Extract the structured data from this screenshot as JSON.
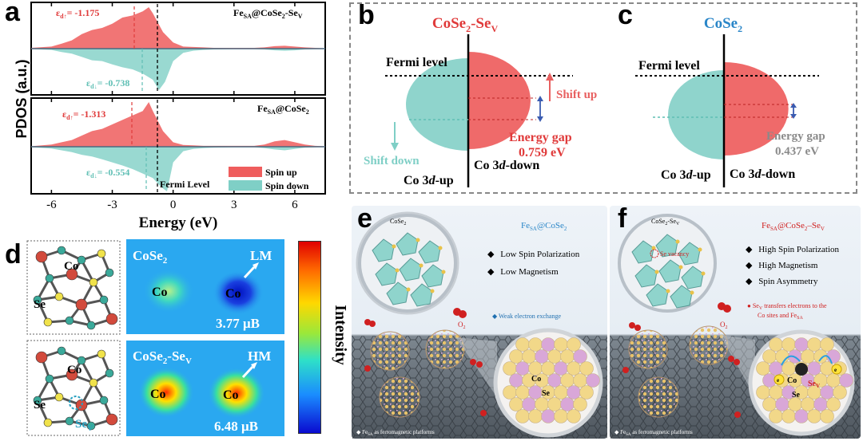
{
  "colors": {
    "spin_up": "#ef5d5d",
    "spin_down": "#7fcfc6",
    "red": "#e03a3a",
    "teal": "#5fbfb4",
    "blue_title": "#2a86c8",
    "gray": "#8a8a8a"
  },
  "panel_a": {
    "label": "a",
    "top": {
      "sys": "Fe",
      "sys_sub": "SA",
      "sys_rest": "@CoSe",
      "sys_sub2": "2",
      "sys_rest2": "-Se",
      "sys_sub3": "V",
      "eps_up_sym": "ε",
      "eps_up_sub": "d↑",
      "eps_up_val": "= -1.175",
      "eps_dn_sym": "ε",
      "eps_dn_sub": "d↓",
      "eps_dn_val": "= -0.738"
    },
    "bottom": {
      "sys": "Fe",
      "sys_sub": "SA",
      "sys_rest": "@CoSe",
      "sys_sub2": "2",
      "eps_up_sym": "ε",
      "eps_up_sub": "d↑",
      "eps_up_val": "= -1.313",
      "eps_dn_sym": "ε",
      "eps_dn_sub": "d↓",
      "eps_dn_val": "= -0.554"
    },
    "fermi_label": "Fermi Level",
    "legend_up": "Spin up",
    "legend_down": "Spin down",
    "xlabel": "Energy (eV)",
    "ylabel": "PDOS (a.u.)",
    "xticks": [
      "-6",
      "-3",
      "0",
      "3",
      "6"
    ]
  },
  "chart_data": [
    {
      "type": "area",
      "title": "",
      "xlabel": "Energy (eV)",
      "ylabel": "PDOS (a.u.)",
      "xlim": [
        -7,
        7.5
      ],
      "xticks": [
        -6,
        -3,
        0,
        3,
        6
      ],
      "legend": [
        "Spin up",
        "Spin down"
      ],
      "legend_position": "bottom-right",
      "annotations": [
        "Fermi Level"
      ],
      "panels": [
        {
          "name": "FeSA@CoSe2-SeV",
          "d_band_center_up": -1.175,
          "d_band_center_down": -0.738,
          "series": [
            {
              "name": "Spin up",
              "x": [
                -7,
                -6,
                -5.5,
                -5,
                -4.5,
                -4,
                -3.5,
                -3,
                -2.5,
                -2,
                -1.5,
                -1.2,
                -1,
                -0.5,
                0,
                0.5,
                1,
                1.5,
                2,
                3,
                4,
                4.5,
                5,
                5.5,
                6,
                6.5,
                7,
                7.5
              ],
              "values": [
                0.02,
                0.05,
                0.12,
                0.2,
                0.35,
                0.45,
                0.5,
                0.6,
                0.75,
                0.8,
                0.9,
                1.0,
                0.85,
                0.4,
                0.15,
                0.05,
                0.04,
                0.03,
                0.02,
                0.02,
                0.02,
                0.03,
                0.06,
                0.07,
                0.05,
                0.03,
                0.02,
                0.01
              ]
            },
            {
              "name": "Spin down",
              "x": [
                -7,
                -6,
                -5.5,
                -5,
                -4.5,
                -4,
                -3.5,
                -3,
                -2.5,
                -2,
                -1.5,
                -1,
                -0.7,
                -0.4,
                0,
                0.5,
                1,
                1.5,
                2,
                3,
                4,
                4.5,
                5,
                5.5,
                6,
                6.5,
                7,
                7.5
              ],
              "values": [
                0.01,
                0.03,
                0.08,
                0.12,
                0.2,
                0.28,
                0.3,
                0.38,
                0.45,
                0.5,
                0.6,
                0.75,
                1.0,
                0.8,
                0.3,
                0.1,
                0.05,
                0.03,
                0.02,
                0.01,
                0.01,
                0.02,
                0.04,
                0.05,
                0.04,
                0.02,
                0.01,
                0.0
              ]
            }
          ]
        },
        {
          "name": "FeSA@CoSe2",
          "d_band_center_up": -1.313,
          "d_band_center_down": -0.554,
          "series": [
            {
              "name": "Spin up",
              "x": [
                -7,
                -6,
                -5.5,
                -5,
                -4.5,
                -4,
                -3.5,
                -3,
                -2.5,
                -2,
                -1.5,
                -1.2,
                -1,
                -0.5,
                0,
                0.5,
                1,
                1.5,
                2,
                3,
                4,
                4.5,
                5,
                5.5,
                6,
                6.5,
                7,
                7.5
              ],
              "values": [
                0.01,
                0.05,
                0.1,
                0.15,
                0.25,
                0.35,
                0.4,
                0.5,
                0.6,
                0.7,
                0.8,
                1.0,
                0.8,
                0.35,
                0.1,
                0.04,
                0.03,
                0.02,
                0.02,
                0.02,
                0.02,
                0.05,
                0.12,
                0.15,
                0.1,
                0.05,
                0.02,
                0.01
              ]
            },
            {
              "name": "Spin down",
              "x": [
                -7,
                -6,
                -5.5,
                -5,
                -4.5,
                -4,
                -3.5,
                -3,
                -2.5,
                -2,
                -1.5,
                -1,
                -0.6,
                -0.3,
                0,
                0.5,
                1,
                1.5,
                2,
                3,
                4,
                4.5,
                5,
                5.5,
                6,
                6.5,
                7,
                7.5
              ],
              "values": [
                0.01,
                0.04,
                0.08,
                0.12,
                0.18,
                0.22,
                0.28,
                0.35,
                0.42,
                0.5,
                0.6,
                0.7,
                0.9,
                1.0,
                0.35,
                0.1,
                0.05,
                0.03,
                0.02,
                0.01,
                0.01,
                0.03,
                0.06,
                0.08,
                0.05,
                0.02,
                0.01,
                0.0
              ]
            }
          ]
        }
      ]
    }
  ],
  "panel_b": {
    "label": "b",
    "title": "CoSe",
    "title_sub": "2",
    "title_rest": "-Se",
    "title_sub2": "V",
    "fermi": "Fermi level",
    "shift_up": "Shift up",
    "shift_down": "Shift down",
    "gap_label": "Energy gap",
    "gap_value": "0.759 eV",
    "up_label_a": "Co 3",
    "up_label_d": "d",
    "up_label_b": "-up",
    "down_label_a": "Co 3",
    "down_label_d": "d",
    "down_label_b": "-down"
  },
  "panel_c": {
    "label": "c",
    "title": "CoSe",
    "title_sub": "2",
    "fermi": "Fermi level",
    "gap_label": "Energy gap",
    "gap_value": "0.437 eV",
    "up_label_a": "Co 3",
    "up_label_d": "d",
    "up_label_b": "-up",
    "down_label_a": "Co 3",
    "down_label_d": "d",
    "down_label_b": "-down"
  },
  "panel_d": {
    "label": "d",
    "top": {
      "title": "CoSe",
      "title_sub": "2",
      "co1": "Co",
      "co2": "Co",
      "state": "LM",
      "moment": "3.77 μB",
      "struct_co": "Co",
      "struct_se": "Se"
    },
    "bottom": {
      "title": "CoSe",
      "title_sub": "2",
      "title_rest": "-Se",
      "title_sub2": "V",
      "co1": "Co",
      "co2": "Co",
      "state": "HM",
      "moment": "6.48 μB",
      "struct_co": "Co",
      "struct_se": "Se",
      "struct_sev": "Se",
      "struct_sev_sub": "V"
    },
    "colorbar_label": "Intensity"
  },
  "panel_e": {
    "label": "e",
    "cap": "CoSe",
    "cap_sub": "2",
    "title": "Fe",
    "title_sub": "SA",
    "title_rest": "@CoSe",
    "title_sub2": "2",
    "bullets": [
      "Low Spin Polarization",
      "Low Magnetism"
    ],
    "exchange": "Weak electron exchange",
    "o2": "O",
    "o2_sub": "2",
    "co": "Co",
    "se": "Se",
    "footer": "Fe",
    "footer_sub": "SA",
    "footer_rest": " as ferromagnetic platforms"
  },
  "panel_f": {
    "label": "f",
    "cap": "CoSe",
    "cap_sub": "2",
    "cap_rest": "-Se",
    "cap_sub2": "V",
    "title": "Fe",
    "title_sub": "SA",
    "title_rest": "@CoSe",
    "title_sub2": "2",
    "title_rest2": "–Se",
    "title_sub3": "V",
    "bullets": [
      "High Spin Polarization",
      "High Magnetism",
      "Spin Asymmetry"
    ],
    "vacancy": "Se vacancy",
    "transfer_a": "Se",
    "transfer_a_sub": "V",
    "transfer_b": " transfers electrons to the",
    "transfer_c": "Co sites and Fe",
    "transfer_c_sub": "SA",
    "o2": "O",
    "o2_sub": "2",
    "co": "Co",
    "se": "Se",
    "sev": "Se",
    "sev_sub": "V",
    "electron": "e",
    "footer": "Fe",
    "footer_sub": "SA",
    "footer_rest": " as ferromagnetic platforms"
  }
}
